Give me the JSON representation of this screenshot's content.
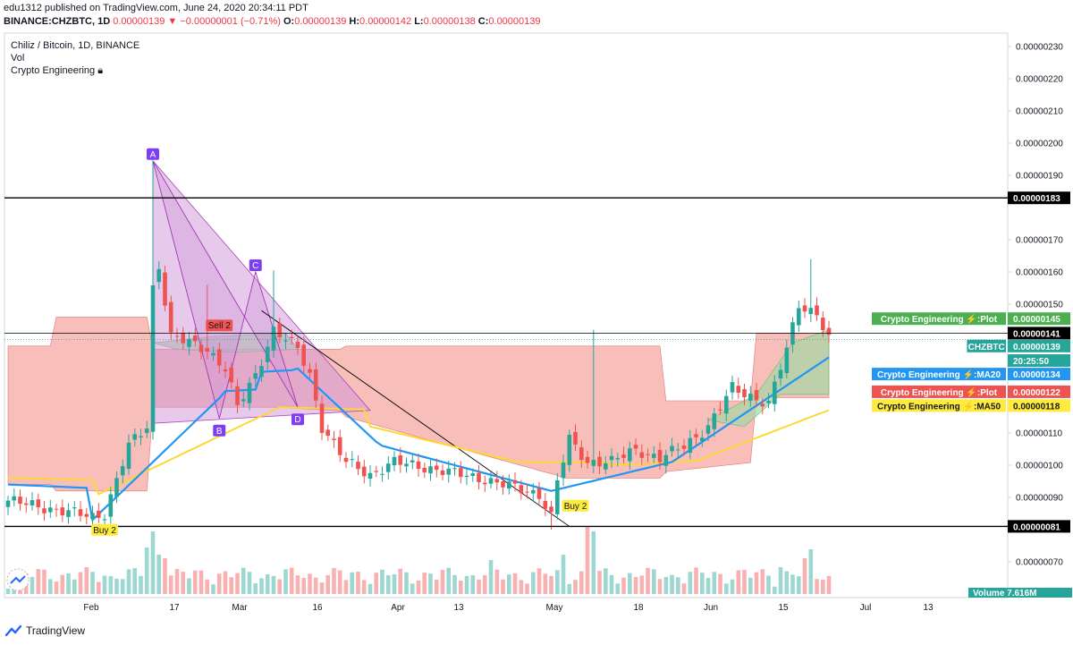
{
  "header": {
    "published": "edu1312 published on TradingView.com, June 24, 2020 20:34:11 PDT",
    "symbol": "BINANCE:CHZBTC, 1D",
    "last": "0.00000139",
    "change": "−0.00000001 (−0.71%)",
    "o_label": "O:",
    "o_value": "0.00000139",
    "h_label": "H:",
    "h_value": "0.00000142",
    "l_label": "L:",
    "l_value": "0.00000138",
    "c_label": "C:",
    "c_value": "0.00000139"
  },
  "legend": {
    "title": "Chiliz / Bitcoin, 1D, BINANCE",
    "vol": "Vol",
    "indicator": "Crypto Engineering"
  },
  "footer": {
    "brand": "TradingView"
  },
  "colors": {
    "up": "#26a69a",
    "down": "#ef5350",
    "ma20": "#2196f3",
    "ma50": "#ffeb3b",
    "cloud_red": "#f28b82",
    "cloud_green": "#a5d6a7",
    "pattern": "#ce93d8"
  },
  "chart_data": {
    "type": "candlestick",
    "symbol": "CHZBTC",
    "timeframe": "1D",
    "yaxis": {
      "ticks": [
        "0.00000230",
        "0.00000220",
        "0.00000210",
        "0.00000200",
        "0.00000190",
        "0.00000170",
        "0.00000160",
        "0.00000150",
        "0.00000110",
        "0.00000100",
        "0.00000090",
        "0.00000070"
      ],
      "ylim": [
        6.4e-07,
        2.36e-06
      ]
    },
    "xaxis": {
      "ticks": [
        "Feb",
        "17",
        "Mar",
        "16",
        "Apr",
        "13",
        "May",
        "18",
        "Jun",
        "15",
        "Jul",
        "13"
      ]
    },
    "horizontal_lines": [
      {
        "label": "0.00000183",
        "value": 1.83e-06
      },
      {
        "label": "0.00000081",
        "value": 8.1e-07
      },
      {
        "label": "0.00000141",
        "value": 1.41e-06
      }
    ],
    "price_tags": [
      {
        "series": "Crypto Engineering ⚡:Plot",
        "value": "0.00000145",
        "color": "#4caf50"
      },
      {
        "series": "",
        "value": "0.00000141",
        "color": "#000000"
      },
      {
        "series": "CHZBTC",
        "value": "0.00000139",
        "color": "#26a69a"
      },
      {
        "series": "",
        "value": "20:25:50",
        "color": "#26a69a"
      },
      {
        "series": "Crypto Engineering ⚡:MA20",
        "value": "0.00000134",
        "color": "#2196f3"
      },
      {
        "series": "Crypto Engineering ⚡:Plot",
        "value": "0.00000122",
        "color": "#ef5350"
      },
      {
        "series": "Crypto Engineering ⚡:MA50",
        "value": "0.00000118",
        "color": "#ffeb3b"
      }
    ],
    "volume_tag": {
      "label": "Volume",
      "value": "7.616M"
    },
    "pattern_points": [
      {
        "label": "A",
        "value": 1.945e-06
      },
      {
        "label": "B",
        "value": 1.145e-06
      },
      {
        "label": "C",
        "value": 1.6e-06
      },
      {
        "label": "D",
        "value": 1.18e-06
      }
    ],
    "signals": [
      {
        "label": "Buy 2",
        "type": "buy"
      },
      {
        "label": "Sell 2",
        "type": "sell"
      },
      {
        "label": "Buy 2",
        "type": "buy"
      }
    ]
  }
}
